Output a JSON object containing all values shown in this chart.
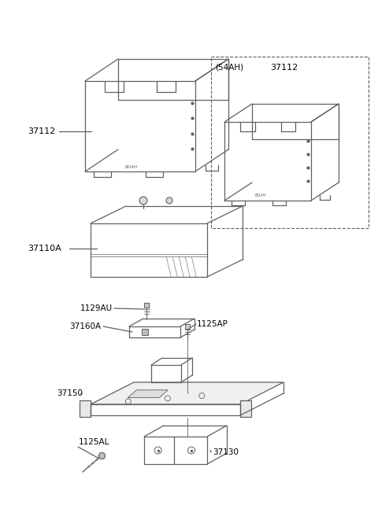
{
  "bg_color": "#ffffff",
  "line_color": "#606060",
  "text_color": "#000000",
  "lw": 0.9,
  "parts_labels": {
    "37112_main": "37112",
    "37112_alt": "37112",
    "54AH": "(54AH)",
    "37110A": "37110A",
    "1129AU": "1129AU",
    "37160A": "37160A",
    "1125AP": "1125AP",
    "37150": "37150",
    "1125AL": "1125AL",
    "37130": "37130"
  }
}
